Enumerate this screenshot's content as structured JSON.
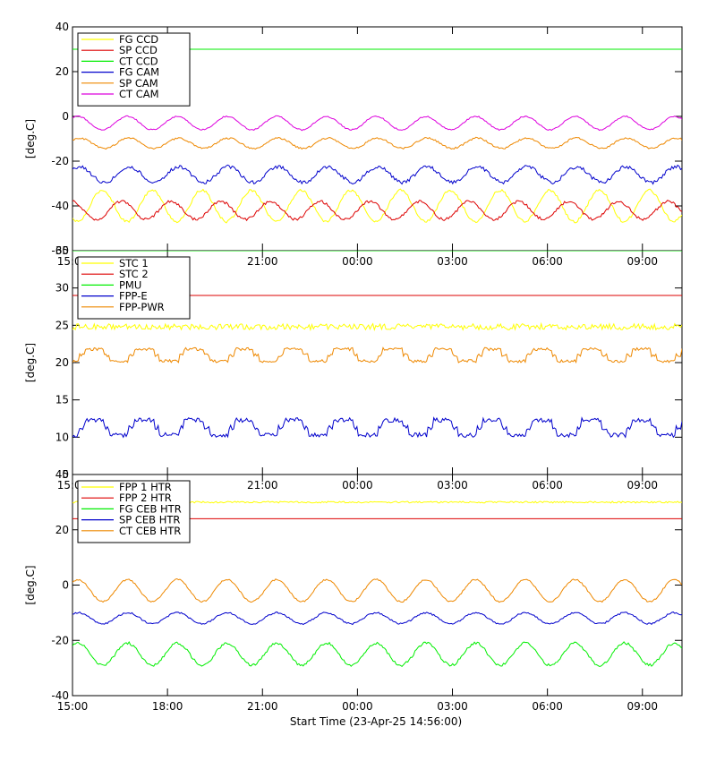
{
  "colors": {
    "yellow": "#ffff00",
    "red": "#dd0000",
    "green": "#00ee00",
    "blue": "#0000cc",
    "orange": "#ee8800",
    "magenta": "#dd00dd"
  },
  "footer": {
    "start_time_label": "Start Time (23-Apr-25 14:56:00)"
  },
  "chart_data": [
    {
      "type": "line",
      "ylabel": "[deg.C]",
      "ylim": [
        -60,
        40
      ],
      "yticks": [
        -60,
        -40,
        -20,
        0,
        20,
        40
      ],
      "xlim": [
        "15:00",
        "10:15"
      ],
      "xticks": [
        "15:00",
        "18:00",
        "21:00",
        "00:00",
        "03:00",
        "06:00",
        "09:00"
      ],
      "legend_position": "top-left",
      "series": [
        {
          "name": "FG CCD",
          "color": "#ffff00",
          "shape": "wave",
          "center": -40,
          "amp": 7,
          "period_h": 1.57,
          "phase_h": 0.55,
          "noise": 0.6
        },
        {
          "name": "SP CCD",
          "color": "#dd0000",
          "shape": "wave",
          "center": -42,
          "amp": 4,
          "period_h": 1.57,
          "phase_h": 1.15,
          "noise": 0.6
        },
        {
          "name": "CT CCD",
          "color": "#00ee00",
          "shape": "flat",
          "center": 30
        },
        {
          "name": "FG CAM",
          "color": "#0000cc",
          "shape": "wave",
          "center": -26,
          "amp": 3.5,
          "period_h": 1.57,
          "phase_h": 1.4,
          "noise": 0.8
        },
        {
          "name": "SP CAM",
          "color": "#ee8800",
          "shape": "wave",
          "center": -12,
          "amp": 2.3,
          "period_h": 1.57,
          "phase_h": 1.4,
          "noise": 0.4
        },
        {
          "name": "CT CAM",
          "color": "#dd00dd",
          "shape": "wave",
          "center": -3,
          "amp": 3,
          "period_h": 1.57,
          "phase_h": 1.35,
          "noise": 0.3
        }
      ]
    },
    {
      "type": "line",
      "ylabel": "[deg.C]",
      "ylim": [
        5,
        35
      ],
      "yticks": [
        5,
        10,
        15,
        20,
        25,
        30,
        35
      ],
      "xlim": [
        "15:00",
        "10:15"
      ],
      "xticks": [
        "15:00",
        "18:00",
        "21:00",
        "00:00",
        "03:00",
        "06:00",
        "09:00"
      ],
      "legend_position": "top-left",
      "series": [
        {
          "name": "STC 1",
          "color": "#ffff00",
          "shape": "flat",
          "center": 24.8,
          "noise": 0.4
        },
        {
          "name": "STC 2",
          "color": "#dd0000",
          "shape": "flat",
          "center": 29
        },
        {
          "name": "PMU",
          "color": "#00ee00",
          "shape": "flat",
          "center": 35
        },
        {
          "name": "FPP-E",
          "color": "#0000cc",
          "shape": "step",
          "center": 11.3,
          "amp": 1.5,
          "period_h": 1.57,
          "phase_h": 0.3,
          "noise": 0.3
        },
        {
          "name": "FPP-PWR",
          "color": "#ee8800",
          "shape": "step",
          "center": 21,
          "amp": 1.2,
          "period_h": 1.57,
          "phase_h": 0.3,
          "noise": 0.2
        }
      ]
    },
    {
      "type": "line",
      "ylabel": "[deg.C]",
      "ylim": [
        -40,
        40
      ],
      "yticks": [
        -40,
        -20,
        0,
        20,
        40
      ],
      "xlim": [
        "15:00",
        "10:15"
      ],
      "xticks": [
        "15:00",
        "18:00",
        "21:00",
        "00:00",
        "03:00",
        "06:00",
        "09:00"
      ],
      "legend_position": "top-left",
      "series": [
        {
          "name": "FPP 1 HTR",
          "color": "#ffff00",
          "shape": "flat",
          "center": 30,
          "noise": 0.3
        },
        {
          "name": "FPP 2 HTR",
          "color": "#dd0000",
          "shape": "flat",
          "center": 24
        },
        {
          "name": "FG CEB HTR",
          "color": "#00ee00",
          "shape": "wave",
          "center": -25,
          "amp": 4,
          "period_h": 1.57,
          "phase_h": 1.35,
          "noise": 0.5
        },
        {
          "name": "SP CEB HTR",
          "color": "#0000cc",
          "shape": "wave",
          "center": -12,
          "amp": 2,
          "period_h": 1.57,
          "phase_h": 1.35,
          "noise": 0.3
        },
        {
          "name": "CT CEB HTR",
          "color": "#ee8800",
          "shape": "wave",
          "center": -2,
          "amp": 4,
          "period_h": 1.57,
          "phase_h": 1.35,
          "noise": 0.3
        }
      ]
    }
  ]
}
